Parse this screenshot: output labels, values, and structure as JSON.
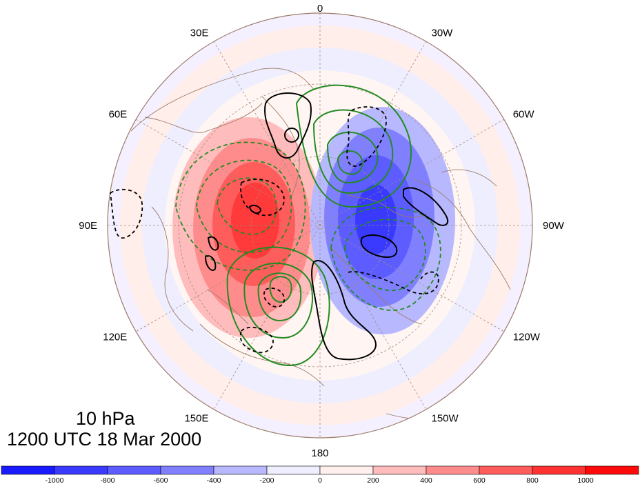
{
  "title": {
    "level": "10 hPa",
    "time": "1200 UTC 18 Mar 2000"
  },
  "longitude_labels": [
    "0",
    "30W",
    "60W",
    "90W",
    "120W",
    "150W",
    "180",
    "150E",
    "120E",
    "90E",
    "60E",
    "30E"
  ],
  "colorbar": {
    "tick_labels": [
      "-1000",
      "-800",
      "-600",
      "-400",
      "-200",
      "0",
      "200",
      "400",
      "600",
      "800",
      "1000"
    ],
    "colors": [
      "#1a1aff",
      "#3a3aff",
      "#5c5cff",
      "#8080ff",
      "#b8b8ff",
      "#eeeeff",
      "#fff0ee",
      "#ffbcbc",
      "#ff8c8c",
      "#ff5c5c",
      "#ff3232",
      "#ff0a0a"
    ]
  },
  "field_colors": {
    "ocean_land_base": "#ffffff",
    "coastline": "#9c7b66",
    "graticule": "#a08c7c",
    "green_contour": "#228b22",
    "black_contour": "#000000"
  }
}
